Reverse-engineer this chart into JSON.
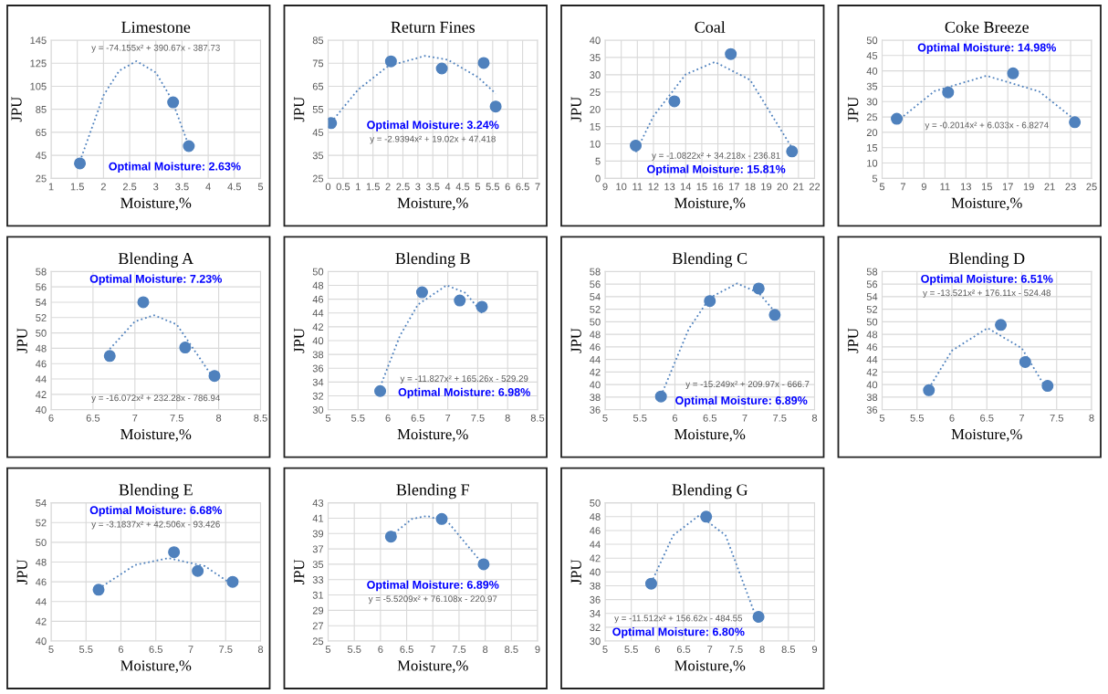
{
  "chart_data": [
    {
      "type": "scatter",
      "title": "Limestone",
      "xlabel": "Moisture,%",
      "ylabel": "JPU",
      "xlim": [
        1,
        5
      ],
      "xticks": [
        1,
        1.5,
        2,
        2.5,
        3,
        3.5,
        4,
        4.5,
        5
      ],
      "ylim": [
        25,
        145
      ],
      "yticks": [
        25,
        45,
        65,
        85,
        105,
        125,
        145
      ],
      "grid": true,
      "series": [
        {
          "type": "scatter",
          "marker": "circle",
          "color": "#4f81bd",
          "x": [
            1.55,
            3.33,
            3.63
          ],
          "values": [
            38,
            91,
            53
          ]
        },
        {
          "type": "line",
          "line_style": "dotted",
          "marker": "none",
          "color": "#4f81bd",
          "x": [
            1.55,
            2.0,
            2.3,
            2.63,
            3.0,
            3.3,
            3.63
          ],
          "values": [
            39.7,
            97.0,
            118.5,
            126.8,
            116.9,
            93.9,
            53.3
          ]
        }
      ],
      "annotations": [
        "y = -74.155x² + 390.67x - 387.73",
        "Optimal Moisture: 2.63%"
      ]
    },
    {
      "type": "scatter",
      "title": "Return Fines",
      "xlabel": "Moisture,%",
      "ylabel": "JPU",
      "xlim": [
        0,
        7
      ],
      "xticks": [
        0,
        0.5,
        1,
        1.5,
        2,
        2.5,
        3,
        3.5,
        4,
        4.5,
        5,
        5.5,
        6,
        6.5,
        7
      ],
      "ylim": [
        25,
        85
      ],
      "yticks": [
        25,
        35,
        45,
        55,
        65,
        75,
        85
      ],
      "grid": true,
      "series": [
        {
          "type": "scatter",
          "marker": "circle",
          "color": "#4f81bd",
          "x": [
            0.1,
            2.1,
            3.8,
            5.2,
            5.6
          ],
          "values": [
            49,
            75.8,
            72.7,
            75.1,
            56.2
          ]
        },
        {
          "type": "line",
          "line_style": "dotted",
          "marker": "none",
          "color": "#4f81bd",
          "x": [
            0.1,
            1,
            2,
            3.24,
            4,
            5,
            5.6
          ],
          "values": [
            49.3,
            63.5,
            73.7,
            78.2,
            76.5,
            69.0,
            61.8
          ]
        }
      ],
      "annotations": [
        "y = -2.9394x² + 19.02x + 47.418",
        "Optimal Moisture: 3.24%"
      ]
    },
    {
      "type": "scatter",
      "title": "Coal",
      "xlabel": "Moisture,%",
      "ylabel": "JPU",
      "xlim": [
        9,
        22
      ],
      "xticks": [
        9,
        10,
        11,
        12,
        13,
        14,
        15,
        16,
        17,
        18,
        19,
        20,
        21,
        22
      ],
      "ylim": [
        0,
        40
      ],
      "yticks": [
        0,
        5,
        10,
        15,
        20,
        25,
        30,
        35,
        40
      ],
      "grid": true,
      "series": [
        {
          "type": "scatter",
          "marker": "circle",
          "color": "#4f81bd",
          "x": [
            10.9,
            13.3,
            16.8,
            20.6
          ],
          "values": [
            9.5,
            22.3,
            36,
            7.8
          ]
        },
        {
          "type": "line",
          "line_style": "dotted",
          "marker": "none",
          "color": "#4f81bd",
          "x": [
            10.9,
            12,
            14,
            15.81,
            18,
            20.6
          ],
          "values": [
            7.6,
            18.0,
            30.1,
            33.7,
            28.5,
            8.8
          ]
        }
      ],
      "annotations": [
        "y = -1.0822x² + 34.218x - 236.81",
        "Optimal Moisture: 15.81%"
      ]
    },
    {
      "type": "scatter",
      "title": "Coke Breeze",
      "xlabel": "Moisture,%",
      "ylabel": "JPU",
      "xlim": [
        5,
        25
      ],
      "xticks": [
        5,
        7,
        9,
        11,
        13,
        15,
        17,
        19,
        21,
        23,
        25
      ],
      "ylim": [
        5,
        50
      ],
      "yticks": [
        5,
        10,
        15,
        20,
        25,
        30,
        35,
        40,
        45,
        50
      ],
      "grid": true,
      "series": [
        {
          "type": "scatter",
          "marker": "circle",
          "color": "#4f81bd",
          "x": [
            6.4,
            11.3,
            17.5,
            23.4
          ],
          "values": [
            24.4,
            33,
            39.2,
            23.3
          ]
        },
        {
          "type": "line",
          "line_style": "dotted",
          "marker": "none",
          "color": "#4f81bd",
          "x": [
            6.4,
            10,
            14.98,
            20,
            23.4
          ],
          "values": [
            23.5,
            33.4,
            38.4,
            33.3,
            24.1
          ]
        }
      ],
      "annotations": [
        "y = -0.2014x² + 6.033x - 6.8274",
        "Optimal Moisture: 14.98%"
      ]
    },
    {
      "type": "scatter",
      "title": "Blending A",
      "xlabel": "Moisture,%",
      "ylabel": "JPU",
      "xlim": [
        6,
        8.5
      ],
      "xticks": [
        6,
        6.5,
        7,
        7.5,
        8,
        8.5
      ],
      "ylim": [
        40,
        58
      ],
      "yticks": [
        40,
        42,
        44,
        46,
        48,
        50,
        52,
        54,
        56,
        58
      ],
      "grid": true,
      "series": [
        {
          "type": "scatter",
          "marker": "circle",
          "color": "#4f81bd",
          "x": [
            6.7,
            7.1,
            7.6,
            7.95
          ],
          "values": [
            47,
            54,
            48.1,
            44.4
          ]
        },
        {
          "type": "line",
          "line_style": "dotted",
          "marker": "none",
          "color": "#4f81bd",
          "x": [
            6.7,
            7,
            7.23,
            7.5,
            7.95
          ],
          "values": [
            47.9,
            51.5,
            52.3,
            51.1,
            43.9
          ]
        }
      ],
      "annotations": [
        "y = -16.072x² + 232.28x - 786.94",
        "Optimal Moisture: 7.23%"
      ]
    },
    {
      "type": "scatter",
      "title": "Blending B",
      "xlabel": "Moisture,%",
      "ylabel": "JPU",
      "xlim": [
        5,
        8.5
      ],
      "xticks": [
        5,
        5.5,
        6,
        6.5,
        7,
        7.5,
        8,
        8.5
      ],
      "ylim": [
        30,
        50
      ],
      "yticks": [
        30,
        32,
        34,
        36,
        38,
        40,
        42,
        44,
        46,
        48,
        50
      ],
      "grid": true,
      "series": [
        {
          "type": "scatter",
          "marker": "circle",
          "color": "#4f81bd",
          "x": [
            5.87,
            6.57,
            7.2,
            7.57
          ],
          "values": [
            32.7,
            47,
            45.8,
            44.9
          ]
        },
        {
          "type": "line",
          "line_style": "dotted",
          "marker": "none",
          "color": "#4f81bd",
          "x": [
            5.87,
            6.2,
            6.5,
            6.98,
            7.3,
            7.57
          ],
          "values": [
            33.3,
            40.7,
            45.2,
            48.0,
            46.9,
            44.0
          ]
        }
      ],
      "annotations": [
        "y = -11.827x² + 165.26x - 529.29",
        "Optimal Moisture: 6.98%"
      ]
    },
    {
      "type": "scatter",
      "title": "Blending C",
      "xlabel": "Moisture,%",
      "ylabel": "JPU",
      "xlim": [
        5,
        8
      ],
      "xticks": [
        5,
        5.5,
        6,
        6.5,
        7,
        7.5,
        8
      ],
      "ylim": [
        36,
        58
      ],
      "yticks": [
        36,
        38,
        40,
        42,
        44,
        46,
        48,
        50,
        52,
        54,
        56,
        58
      ],
      "grid": true,
      "series": [
        {
          "type": "scatter",
          "marker": "circle",
          "color": "#4f81bd",
          "x": [
            5.8,
            6.5,
            7.2,
            7.43
          ],
          "values": [
            38.1,
            53.3,
            55.3,
            51.1
          ]
        },
        {
          "type": "line",
          "line_style": "dotted",
          "marker": "none",
          "color": "#4f81bd",
          "x": [
            5.8,
            6.2,
            6.5,
            6.89,
            7.2,
            7.43
          ],
          "values": [
            38.2,
            48.9,
            53.8,
            56.1,
            54.6,
            51.6
          ]
        }
      ],
      "annotations": [
        "y = -15.249x² + 209.97x - 666.7",
        "Optimal Moisture: 6.89%"
      ]
    },
    {
      "type": "scatter",
      "title": "Blending D",
      "xlabel": "Moisture,%",
      "ylabel": "JPU",
      "xlim": [
        5,
        8
      ],
      "xticks": [
        5,
        5.5,
        6,
        6.5,
        7,
        7.5,
        8
      ],
      "ylim": [
        36,
        58
      ],
      "yticks": [
        36,
        38,
        40,
        42,
        44,
        46,
        48,
        50,
        52,
        54,
        56,
        58
      ],
      "grid": true,
      "series": [
        {
          "type": "scatter",
          "marker": "circle",
          "color": "#4f81bd",
          "x": [
            5.67,
            6.7,
            7.05,
            7.37
          ],
          "values": [
            39.1,
            49.5,
            43.6,
            39.8
          ]
        },
        {
          "type": "line",
          "line_style": "dotted",
          "marker": "none",
          "color": "#4f81bd",
          "x": [
            5.67,
            6,
            6.51,
            7,
            7.37
          ],
          "values": [
            39.4,
            45.4,
            49.0,
            45.8,
            39.0
          ]
        }
      ],
      "annotations": [
        "y = -13.521x² + 176.11x - 524.48",
        "Optimal Moisture: 6.51%"
      ]
    },
    {
      "type": "scatter",
      "title": "Blending E",
      "xlabel": "Moisture,%",
      "ylabel": "JPU",
      "xlim": [
        5,
        8
      ],
      "xticks": [
        5,
        5.5,
        6,
        6.5,
        7,
        7.5,
        8
      ],
      "ylim": [
        40,
        54
      ],
      "yticks": [
        40,
        42,
        44,
        46,
        48,
        50,
        52,
        54
      ],
      "grid": true,
      "series": [
        {
          "type": "scatter",
          "marker": "circle",
          "color": "#4f81bd",
          "x": [
            5.68,
            6.76,
            7.1,
            7.6
          ],
          "values": [
            45.2,
            49,
            47.1,
            46
          ]
        },
        {
          "type": "line",
          "line_style": "dotted",
          "marker": "none",
          "color": "#4f81bd",
          "x": [
            5.68,
            6.2,
            6.68,
            7.2,
            7.6
          ],
          "values": [
            45.3,
            47.7,
            48.4,
            47.6,
            45.7
          ]
        }
      ],
      "annotations": [
        "y = -3.1837x² + 42.506x - 93.426",
        "Optimal Moisture: 6.68%"
      ]
    },
    {
      "type": "scatter",
      "title": "Blending F",
      "xlabel": "Moisture,%",
      "ylabel": "JPU",
      "xlim": [
        5,
        9
      ],
      "xticks": [
        5,
        5.5,
        6,
        6.5,
        7,
        7.5,
        8,
        8.5,
        9
      ],
      "ylim": [
        25,
        43
      ],
      "yticks": [
        25,
        27,
        29,
        31,
        33,
        35,
        37,
        39,
        41,
        43
      ],
      "grid": true,
      "series": [
        {
          "type": "scatter",
          "marker": "circle",
          "color": "#4f81bd",
          "x": [
            6.2,
            7.17,
            7.97
          ],
          "values": [
            38.6,
            40.9,
            35
          ]
        },
        {
          "type": "line",
          "line_style": "dotted",
          "marker": "none",
          "color": "#4f81bd",
          "x": [
            6.2,
            6.6,
            6.89,
            7.3,
            7.97
          ],
          "values": [
            38.7,
            40.9,
            41.3,
            40.4,
            34.9
          ]
        }
      ],
      "annotations": [
        "y = -5.5209x² + 76.108x - 220.97",
        "Optimal Moisture: 6.89%"
      ]
    },
    {
      "type": "scatter",
      "title": "Blending G",
      "xlabel": "Moisture,%",
      "ylabel": "JPU",
      "xlim": [
        5,
        9
      ],
      "xticks": [
        5,
        5.5,
        6,
        6.5,
        7,
        7.5,
        8,
        8.5,
        9
      ],
      "ylim": [
        30,
        50
      ],
      "yticks": [
        30,
        32,
        34,
        36,
        38,
        40,
        42,
        44,
        46,
        48,
        50
      ],
      "grid": true,
      "series": [
        {
          "type": "scatter",
          "marker": "circle",
          "color": "#4f81bd",
          "x": [
            5.88,
            6.93,
            7.93
          ],
          "values": [
            38.3,
            48,
            33.5
          ]
        },
        {
          "type": "line",
          "line_style": "dotted",
          "marker": "none",
          "color": "#4f81bd",
          "x": [
            5.88,
            6.3,
            6.8,
            7.3,
            7.93
          ],
          "values": [
            38.4,
            45.3,
            48.2,
            45.3,
            32.5
          ]
        }
      ],
      "annotations": [
        "y = -11.512x² + 156.62x - 484.55",
        "Optimal Moisture: 6.80%"
      ]
    }
  ]
}
